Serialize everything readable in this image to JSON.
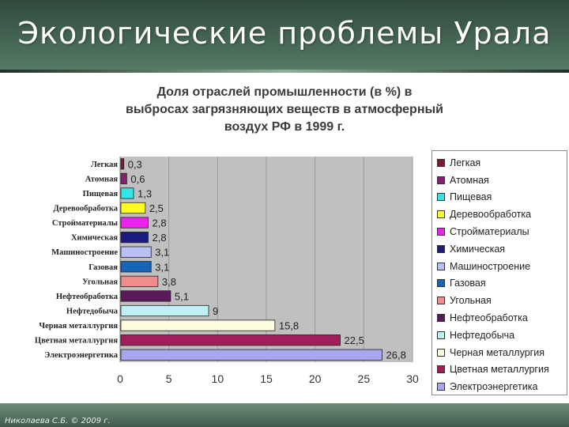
{
  "slide": {
    "title": "Экологические проблемы Урала",
    "footer": "Николаева С.Б. © 2009 г."
  },
  "chart_data": {
    "type": "bar",
    "orientation": "horizontal",
    "title_lines": [
      "Доля отраслей промышленности (в %) в",
      "выбросах загрязняющих веществ в атмосферный",
      "воздух РФ в 1999 г."
    ],
    "categories": [
      "Легкая",
      "Атомная",
      "Пищевая",
      "Деревообработка",
      "Стройматериалы",
      "Химическая",
      "Машиностроение",
      "Газовая",
      "Угольная",
      "Нефтеобработка",
      "Нефтедобыча",
      "Черная металлургия",
      "Цветная металлургия",
      "Электроэнергетика"
    ],
    "values": [
      0.3,
      0.6,
      1.3,
      2.5,
      2.8,
      2.8,
      3.1,
      3.1,
      3.8,
      5.1,
      9,
      15.8,
      22.5,
      26.8
    ],
    "value_labels": [
      "0,3",
      "0,6",
      "1,3",
      "2,5",
      "2,8",
      "2,8",
      "3,1",
      "3,1",
      "3,8",
      "5,1",
      "9",
      "15,8",
      "22,5",
      "26,8"
    ],
    "colors": [
      "#7b1c33",
      "#8b1e6f",
      "#33e6e6",
      "#ffff22",
      "#ee22ee",
      "#1c1c80",
      "#b8c0f4",
      "#1565b8",
      "#f08c8c",
      "#5a1a5a",
      "#bfeff5",
      "#fffde0",
      "#a01e5a",
      "#a7a7f0"
    ],
    "xlim": [
      0,
      30
    ],
    "xticks": [
      0,
      5,
      10,
      15,
      20,
      25,
      30
    ],
    "legend": {
      "position": "right",
      "items": [
        "Легкая",
        "Атомная",
        "Пищевая",
        "Деревообработка",
        "Стройматериалы",
        "Химическая",
        "Машиностроение",
        "Газовая",
        "Угольная",
        "Нефтеобработка",
        "Нефтедобыча",
        "Черная металлургия",
        "Цветная металлургия",
        "Электроэнергетика"
      ]
    }
  }
}
